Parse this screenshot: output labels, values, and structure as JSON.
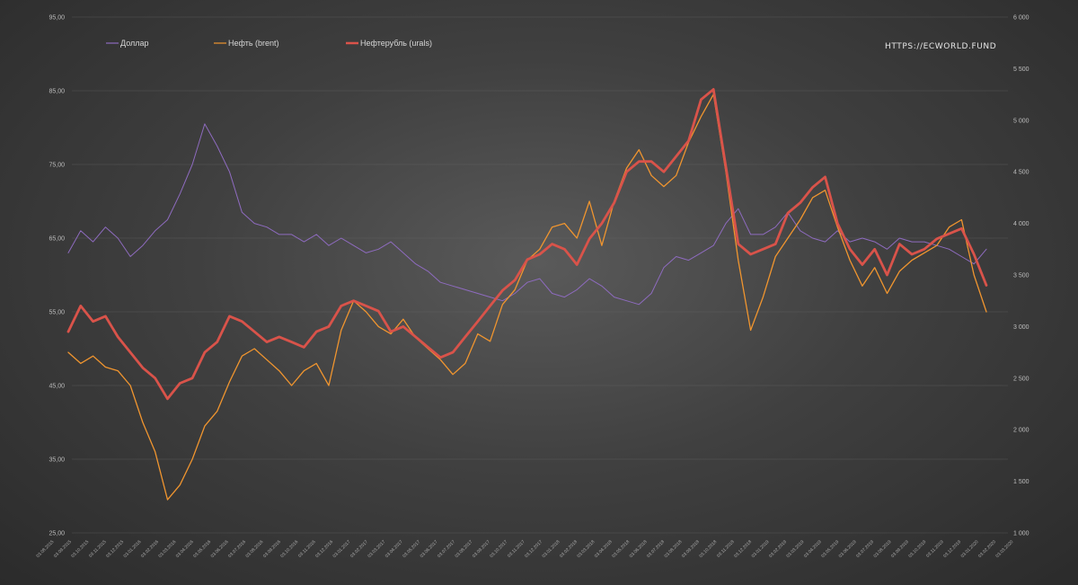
{
  "chart_data": {
    "type": "line",
    "watermark": "HTTPS://ECWORLD.FUND",
    "y_left_ticks": [
      "95,00",
      "85,00",
      "75,00",
      "65,00",
      "55,00",
      "45,00",
      "35,00",
      "25,00"
    ],
    "y_left_range": [
      25,
      95
    ],
    "y_right_ticks": [
      "6 000",
      "5 500",
      "5 000",
      "4 500",
      "4 000",
      "3 500",
      "3 000",
      "2 500",
      "2 000",
      "1 500",
      "1 000"
    ],
    "y_right_range": [
      1000,
      6000
    ],
    "legend_position": "top-left",
    "grid": "horizontal",
    "x_tick_labels": [
      "03.08.2015",
      "03.09.2015",
      "03.10.2015",
      "03.11.2015",
      "03.12.2015",
      "03.01.2016",
      "03.02.2016",
      "03.03.2016",
      "03.04.2016",
      "03.05.2016",
      "03.06.2016",
      "03.07.2016",
      "03.08.2016",
      "03.09.2016",
      "03.10.2016",
      "03.11.2016",
      "03.12.2016",
      "03.01.2017",
      "03.02.2017",
      "03.03.2017",
      "03.04.2017",
      "03.05.2017",
      "03.06.2017",
      "03.07.2017",
      "03.08.2017",
      "03.09.2017",
      "03.10.2017",
      "03.11.2017",
      "03.12.2017",
      "03.01.2018",
      "03.02.2018",
      "03.03.2018",
      "03.04.2018",
      "03.05.2018",
      "03.06.2018",
      "03.07.2018",
      "03.08.2018",
      "03.09.2018",
      "03.10.2018",
      "03.11.2018",
      "03.12.2018",
      "03.01.2019",
      "03.02.2019",
      "03.03.2019",
      "03.04.2019",
      "03.05.2019",
      "03.06.2019",
      "03.07.2019",
      "03.08.2019",
      "03.09.2019",
      "03.10.2019",
      "03.11.2019",
      "03.12.2019",
      "03.01.2020",
      "03.02.2020",
      "03.03.2020"
    ],
    "series": [
      {
        "name": "Доллар",
        "color": "#8e6bbf",
        "axis": "left",
        "values": [
          63.0,
          66.0,
          64.5,
          66.5,
          65.0,
          62.5,
          64.0,
          66.0,
          67.5,
          71.0,
          75.0,
          80.5,
          77.5,
          74.0,
          68.5,
          67.0,
          66.5,
          65.5,
          65.5,
          64.5,
          65.5,
          64.0,
          65.0,
          64.0,
          63.0,
          63.5,
          64.5,
          63.0,
          61.5,
          60.5,
          59.0,
          58.5,
          58.0,
          57.5,
          57.0,
          56.5,
          57.5,
          59.0,
          59.5,
          57.5,
          57.0,
          58.0,
          59.5,
          58.5,
          57.0,
          56.5,
          56.0,
          57.5,
          61.0,
          62.5,
          62.0,
          63.0,
          64.0,
          67.0,
          69.0,
          65.5,
          65.5,
          66.5,
          68.5,
          66.0,
          65.0,
          64.5,
          66.0,
          64.5,
          65.0,
          64.5,
          63.5,
          65.0,
          64.5,
          64.5,
          64.0,
          63.5,
          62.5,
          61.5,
          63.5
        ]
      },
      {
        "name": "Нефть (brent)",
        "color": "#f0952f",
        "axis": "left",
        "values": [
          49.5,
          48.0,
          49.0,
          47.5,
          47.0,
          45.0,
          40.0,
          36.0,
          29.5,
          31.5,
          35.0,
          39.5,
          41.5,
          45.5,
          49.0,
          50.0,
          48.5,
          47.0,
          45.0,
          47.0,
          48.0,
          45.0,
          52.5,
          56.5,
          55.0,
          53.0,
          52.0,
          54.0,
          51.5,
          50.0,
          48.5,
          46.5,
          48.0,
          52.0,
          51.0,
          56.0,
          58.0,
          62.0,
          63.5,
          66.5,
          67.0,
          65.0,
          70.0,
          64.0,
          70.0,
          74.5,
          77.0,
          73.5,
          72.0,
          73.5,
          78.0,
          81.5,
          84.5,
          74.0,
          62.0,
          52.5,
          57.0,
          62.5,
          65.0,
          67.5,
          70.5,
          71.5,
          66.5,
          62.0,
          58.5,
          61.0,
          57.5,
          60.5,
          62.0,
          63.0,
          64.0,
          66.5,
          67.5,
          60.0,
          55.0
        ]
      },
      {
        "name": "Нефтерубль (urals)",
        "color": "#d9534a",
        "axis": "right",
        "values": [
          2950,
          3200,
          3050,
          3100,
          2900,
          2750,
          2600,
          2500,
          2300,
          2450,
          2500,
          2750,
          2850,
          3100,
          3050,
          2950,
          2850,
          2900,
          2850,
          2800,
          2950,
          3000,
          3200,
          3250,
          3200,
          3150,
          2950,
          3000,
          2900,
          2800,
          2700,
          2750,
          2900,
          3050,
          3200,
          3350,
          3450,
          3650,
          3700,
          3800,
          3750,
          3600,
          3850,
          4000,
          4200,
          4500,
          4600,
          4600,
          4500,
          4650,
          4800,
          5200,
          5300,
          4550,
          3800,
          3700,
          3750,
          3800,
          4100,
          4200,
          4350,
          4450,
          4000,
          3750,
          3600,
          3750,
          3500,
          3800,
          3700,
          3750,
          3850,
          3900,
          3950,
          3700,
          3400
        ]
      }
    ]
  }
}
